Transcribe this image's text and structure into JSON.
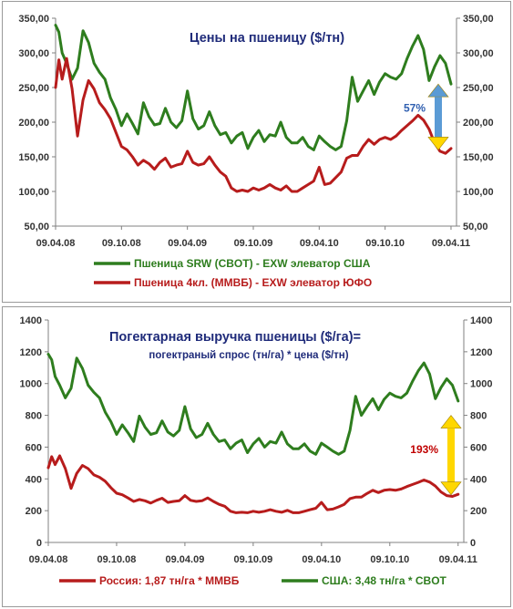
{
  "colors": {
    "green": "#2e7d1e",
    "red": "#b71c1c",
    "axis": "#808080",
    "title": "#1f2b7a",
    "arrow_blue": "#5b9bd5",
    "arrow_yellow": "#ffd700"
  },
  "chart_data": [
    {
      "type": "line",
      "title": "Цены на пшеницу ($/тн)",
      "subtitle": "",
      "ylim": [
        50,
        350
      ],
      "yticks": [
        "50,00",
        "100,00",
        "150,00",
        "200,00",
        "250,00",
        "300,00",
        "350,00"
      ],
      "ytick_values": [
        50,
        100,
        150,
        200,
        250,
        300,
        350
      ],
      "xlim": [
        0,
        36.5
      ],
      "xticks": [
        "09.04.08",
        "09.10.08",
        "09.04.09",
        "09.10.09",
        "09.04.10",
        "09.10.10",
        "09.04.11"
      ],
      "xtick_values": [
        0,
        6,
        12,
        18,
        24,
        30,
        36
      ],
      "right_axis": true,
      "annotation": "57%",
      "annotation_range": [
        160,
        255
      ],
      "series": [
        {
          "name": "Пшеница SRW (CBOT) - EXW элеватор США",
          "color": "green",
          "x": [
            0,
            0.3,
            0.6,
            1,
            1.5,
            2,
            2.5,
            3,
            3.5,
            4,
            4.5,
            5,
            5.5,
            6,
            6.5,
            7,
            7.5,
            8,
            8.5,
            9,
            9.5,
            10,
            10.5,
            11,
            11.5,
            12,
            12.5,
            13,
            13.5,
            14,
            14.5,
            15,
            15.5,
            16,
            16.5,
            17,
            17.5,
            18,
            18.5,
            19,
            19.5,
            20,
            20.5,
            21,
            21.5,
            22,
            22.5,
            23,
            23.5,
            24,
            24.5,
            25,
            25.5,
            26,
            26.5,
            27,
            27.5,
            28,
            28.5,
            29,
            29.5,
            30,
            30.5,
            31,
            31.5,
            32,
            32.5,
            33,
            33.5,
            34,
            34.5,
            35,
            35.5,
            36
          ],
          "values": [
            340,
            330,
            300,
            285,
            262,
            278,
            332,
            315,
            285,
            272,
            262,
            235,
            218,
            195,
            212,
            198,
            183,
            228,
            208,
            196,
            198,
            220,
            200,
            192,
            202,
            245,
            205,
            190,
            195,
            215,
            195,
            182,
            185,
            170,
            180,
            185,
            162,
            178,
            188,
            172,
            182,
            180,
            200,
            178,
            170,
            170,
            178,
            165,
            160,
            180,
            172,
            165,
            160,
            165,
            202,
            265,
            230,
            245,
            260,
            240,
            258,
            270,
            265,
            262,
            270,
            292,
            310,
            325,
            305,
            260,
            280,
            296,
            285,
            255
          ]
        },
        {
          "name": "Пшеница 4кл. (ММВБ)  - EXW элеватор ЮФО",
          "color": "red",
          "x": [
            0,
            0.3,
            0.6,
            1,
            1.5,
            2,
            2.5,
            3,
            3.5,
            4,
            4.5,
            5,
            5.5,
            6,
            6.5,
            7,
            7.5,
            8,
            8.5,
            9,
            9.5,
            10,
            10.5,
            11,
            11.5,
            12,
            12.5,
            13,
            13.5,
            14,
            14.5,
            15,
            15.5,
            16,
            16.5,
            17,
            17.5,
            18,
            18.5,
            19,
            19.5,
            20,
            20.5,
            21,
            21.5,
            22,
            22.5,
            23,
            23.5,
            24,
            24.5,
            25,
            25.5,
            26,
            26.5,
            27,
            27.5,
            28,
            28.5,
            29,
            29.5,
            30,
            30.5,
            31,
            31.5,
            32,
            32.5,
            33,
            33.5,
            34,
            34.5,
            35,
            35.5,
            36
          ],
          "values": [
            250,
            290,
            262,
            292,
            248,
            180,
            232,
            260,
            248,
            228,
            218,
            205,
            185,
            165,
            160,
            150,
            138,
            145,
            140,
            132,
            142,
            148,
            135,
            138,
            140,
            158,
            142,
            138,
            140,
            150,
            138,
            128,
            122,
            105,
            100,
            102,
            100,
            105,
            102,
            105,
            110,
            105,
            102,
            108,
            100,
            100,
            105,
            110,
            115,
            135,
            110,
            112,
            120,
            128,
            148,
            152,
            152,
            165,
            175,
            168,
            175,
            178,
            175,
            180,
            188,
            195,
            202,
            210,
            203,
            190,
            170,
            158,
            155,
            162
          ]
        }
      ]
    },
    {
      "type": "line",
      "title": "Погектарная  выручка  пшеницы ($/га)=",
      "subtitle": "погектраный спрос (тн/га) * цена ($/тн)",
      "ylim": [
        0,
        1400
      ],
      "yticks": [
        "0",
        "200",
        "400",
        "600",
        "800",
        "1000",
        "1200",
        "1400"
      ],
      "ytick_values": [
        0,
        200,
        400,
        600,
        800,
        1000,
        1200,
        1400
      ],
      "xlim": [
        0,
        36.5
      ],
      "xticks": [
        "09.04.08",
        "09.10.08",
        "09.04.09",
        "09.10.09",
        "09.04.10",
        "09.10.10",
        "09.04.11"
      ],
      "xtick_values": [
        0,
        6,
        12,
        18,
        24,
        30,
        36
      ],
      "right_axis": true,
      "annotation": "193%",
      "annotation_range": [
        300,
        800
      ],
      "series": [
        {
          "name": "Россия:  1,87 тн/га * ММВБ",
          "color": "red",
          "x": [
            0,
            0.3,
            0.6,
            1,
            1.5,
            2,
            2.5,
            3,
            3.5,
            4,
            4.5,
            5,
            5.5,
            6,
            6.5,
            7,
            7.5,
            8,
            8.5,
            9,
            9.5,
            10,
            10.5,
            11,
            11.5,
            12,
            12.5,
            13,
            13.5,
            14,
            14.5,
            15,
            15.5,
            16,
            16.5,
            17,
            17.5,
            18,
            18.5,
            19,
            19.5,
            20,
            20.5,
            21,
            21.5,
            22,
            22.5,
            23,
            23.5,
            24,
            24.5,
            25,
            25.5,
            26,
            26.5,
            27,
            27.5,
            28,
            28.5,
            29,
            29.5,
            30,
            30.5,
            31,
            31.5,
            32,
            32.5,
            33,
            33.5,
            34,
            34.5,
            35,
            35.5,
            36
          ],
          "values": [
            470,
            540,
            490,
            545,
            465,
            340,
            435,
            485,
            465,
            425,
            410,
            385,
            345,
            310,
            300,
            280,
            258,
            270,
            262,
            248,
            265,
            278,
            252,
            258,
            262,
            295,
            265,
            258,
            262,
            280,
            258,
            240,
            228,
            196,
            187,
            190,
            187,
            196,
            190,
            196,
            206,
            196,
            190,
            202,
            187,
            187,
            196,
            206,
            215,
            252,
            206,
            210,
            224,
            240,
            276,
            285,
            285,
            308,
            328,
            314,
            328,
            333,
            328,
            336,
            352,
            365,
            378,
            393,
            380,
            355,
            318,
            295,
            290,
            303
          ]
        },
        {
          "name": "США: 3,48 тн/га * CBOT",
          "color": "green",
          "x": [
            0,
            0.3,
            0.6,
            1,
            1.5,
            2,
            2.5,
            3,
            3.5,
            4,
            4.5,
            5,
            5.5,
            6,
            6.5,
            7,
            7.5,
            8,
            8.5,
            9,
            9.5,
            10,
            10.5,
            11,
            11.5,
            12,
            12.5,
            13,
            13.5,
            14,
            14.5,
            15,
            15.5,
            16,
            16.5,
            17,
            17.5,
            18,
            18.5,
            19,
            19.5,
            20,
            20.5,
            21,
            21.5,
            22,
            22.5,
            23,
            23.5,
            24,
            24.5,
            25,
            25.5,
            26,
            26.5,
            27,
            27.5,
            28,
            28.5,
            29,
            29.5,
            30,
            30.5,
            31,
            31.5,
            32,
            32.5,
            33,
            33.5,
            34,
            34.5,
            35,
            35.5,
            36
          ],
          "values": [
            1185,
            1150,
            1045,
            990,
            910,
            970,
            1160,
            1095,
            990,
            945,
            910,
            820,
            760,
            680,
            740,
            690,
            635,
            795,
            725,
            680,
            690,
            765,
            695,
            670,
            705,
            855,
            715,
            660,
            680,
            750,
            680,
            635,
            645,
            590,
            625,
            645,
            565,
            620,
            655,
            600,
            635,
            625,
            695,
            620,
            590,
            590,
            620,
            575,
            555,
            625,
            600,
            575,
            555,
            575,
            705,
            920,
            800,
            855,
            905,
            835,
            900,
            940,
            920,
            910,
            940,
            1015,
            1080,
            1130,
            1060,
            905,
            975,
            1030,
            990,
            890
          ]
        }
      ]
    }
  ]
}
